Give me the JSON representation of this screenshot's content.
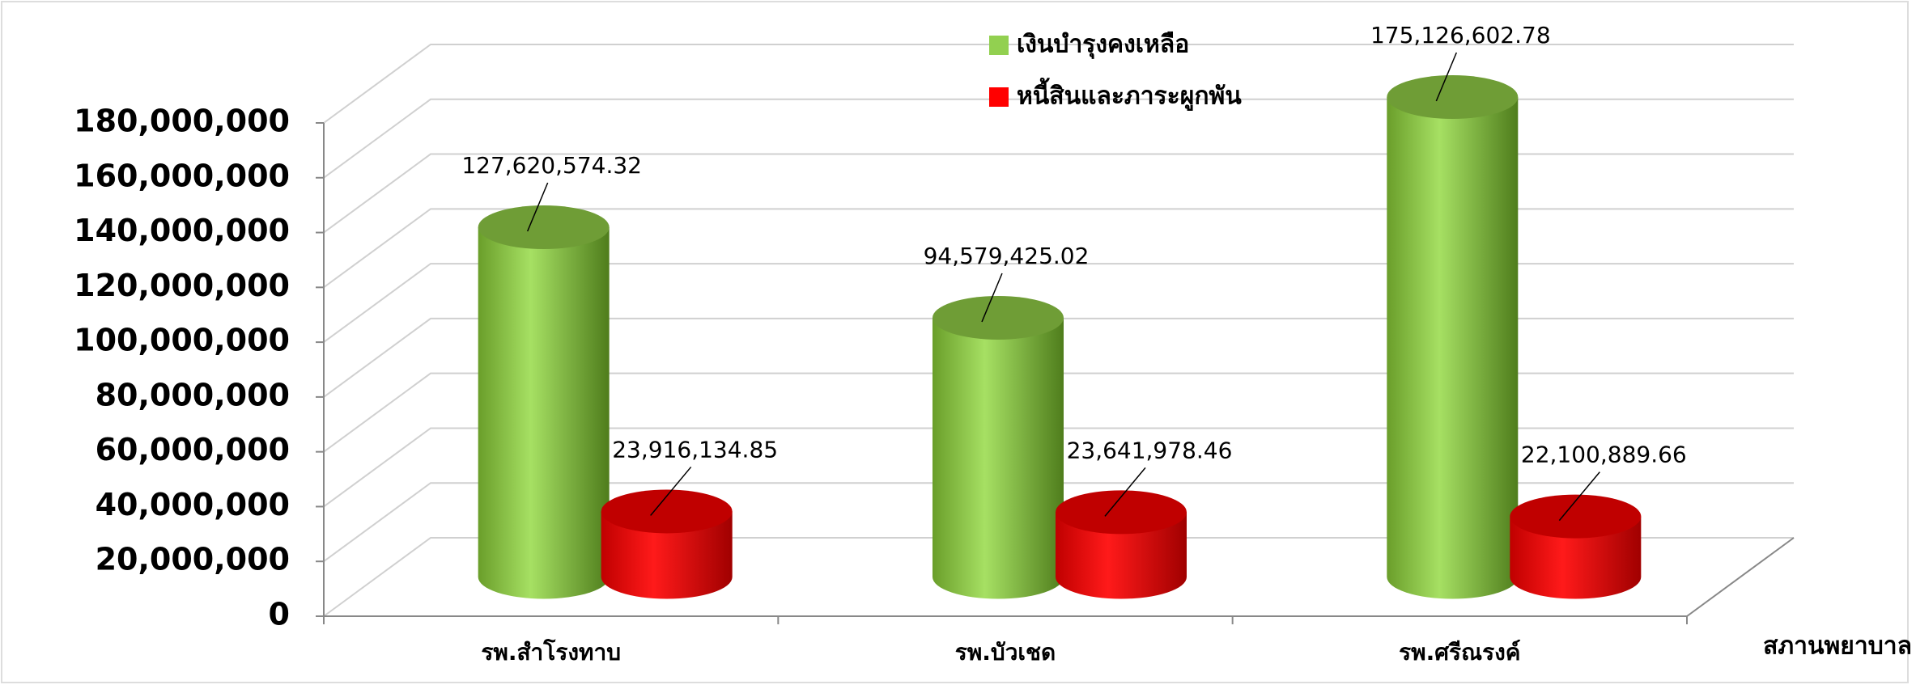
{
  "chart_data": {
    "type": "bar3d",
    "categories": [
      "รพ.สำโรงทาบ",
      "รพ.บัวเชด",
      "รพ.ศรีณรงค์"
    ],
    "series": [
      {
        "name": "เงินบำรุงคงเหลือ",
        "color": "#92d050",
        "values": [
          127620574.32,
          94579425.02,
          175126602.78
        ],
        "value_labels": [
          "127,620,574.32",
          "94,579,425.02",
          "175,126,602.78"
        ]
      },
      {
        "name": "หนี้สินและภาระผูกพัน",
        "color": "#ff0000",
        "values": [
          23916134.85,
          23641978.46,
          22100889.66
        ],
        "value_labels": [
          "23,916,134.85",
          "23,641,978.46",
          "22,100,889.66"
        ]
      }
    ],
    "x_label": "สภานพยาบาล",
    "ylim": [
      0,
      180000000
    ],
    "yticks": [
      0,
      {
        "value": 20000000,
        "label": "20,000,000"
      },
      {
        "value": 40000000,
        "label": "40,000,000"
      },
      {
        "value": 60000000,
        "label": "60,000,000"
      },
      {
        "value": 80000000,
        "label": "80,000,000"
      },
      {
        "value": 100000000,
        "label": "100,000,000"
      },
      {
        "value": 120000000,
        "label": "120,000,000"
      },
      {
        "value": 140000000,
        "label": "140,000,000"
      },
      {
        "value": 160000000,
        "label": "160,000,000"
      },
      {
        "value": 180000000,
        "label": "180,000,000"
      }
    ],
    "grid": true,
    "legend": "top"
  }
}
